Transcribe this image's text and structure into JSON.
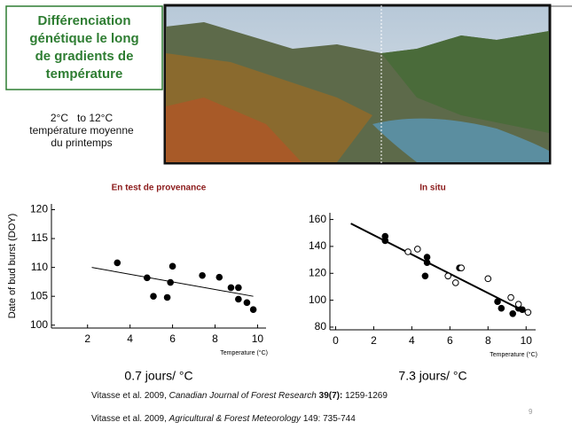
{
  "slide": {
    "box_title": [
      "Différenciation",
      "génétique le long",
      "de gradients de",
      "température"
    ],
    "range_text": [
      "2°C   to 12°C",
      "température moyenne",
      "du printemps"
    ],
    "page_number": "9",
    "citations": [
      {
        "authors": "Vitasse et al. 2009, ",
        "journal": "Canadian Journal of Forest Research",
        "volume": " 39(7):",
        "pages": " 1259-1269"
      },
      {
        "authors": "Vitasse et al. 2009, ",
        "journal": "Agricultural & Forest Meteorology",
        "pages": " 149: 735-744"
      }
    ]
  },
  "chart_data": [
    {
      "type": "scatter",
      "title": "En test de provenance",
      "title_color": "#8b1a1a",
      "y_label": "Date of bud burst (DOY)",
      "x_label": "Temperature (°C)",
      "rate": "0.7 jours/ °C",
      "xlim": [
        0.3,
        10.4
      ],
      "ylim": [
        99.5,
        121
      ],
      "xticks": [
        2,
        4,
        6,
        8,
        10
      ],
      "yticks": [
        100,
        105,
        110,
        115,
        120
      ],
      "series": [
        {
          "filled": true,
          "color": "#000000",
          "x": [
            3.4,
            4.8,
            5.1,
            5.75,
            5.9,
            6.0,
            7.4,
            8.2,
            8.75,
            9.1,
            9.1,
            9.5,
            9.8
          ],
          "values": [
            110.8,
            108.2,
            105,
            104.8,
            107.4,
            110.2,
            108.6,
            108.3,
            106.5,
            106.5,
            104.5,
            103.9,
            102.7
          ]
        }
      ],
      "fit": {
        "x": [
          2.2,
          9.8
        ],
        "values": [
          110,
          105
        ]
      }
    },
    {
      "type": "scatter",
      "title": "In situ",
      "title_color": "#8b1a1a",
      "x_label": "Temperature (°C)",
      "rate": "7.3 jours/ °C",
      "xlim": [
        -0.3,
        10.5
      ],
      "ylim": [
        78,
        165
      ],
      "xticks": [
        0,
        2,
        4,
        6,
        8,
        10
      ],
      "yticks": [
        80,
        100,
        120,
        140,
        160
      ],
      "series": [
        {
          "filled": true,
          "color": "#000000",
          "x": [
            2.6,
            2.6,
            4.8,
            4.8,
            4.7,
            6.5,
            8.5,
            8.7,
            9.3,
            9.6,
            9.8
          ],
          "values": [
            147.5,
            144.3,
            132,
            128,
            118,
            124,
            99,
            94,
            90,
            94,
            93
          ]
        },
        {
          "filled": false,
          "color": "#000000",
          "x": [
            3.8,
            4.3,
            5.9,
            6.3,
            6.6,
            8,
            9.2,
            9.6,
            10.1
          ],
          "values": [
            136,
            138,
            118,
            113,
            124,
            116,
            102,
            97,
            91
          ]
        }
      ],
      "fit": {
        "x": [
          0.8,
          10
        ],
        "values": [
          157,
          91
        ]
      }
    }
  ]
}
